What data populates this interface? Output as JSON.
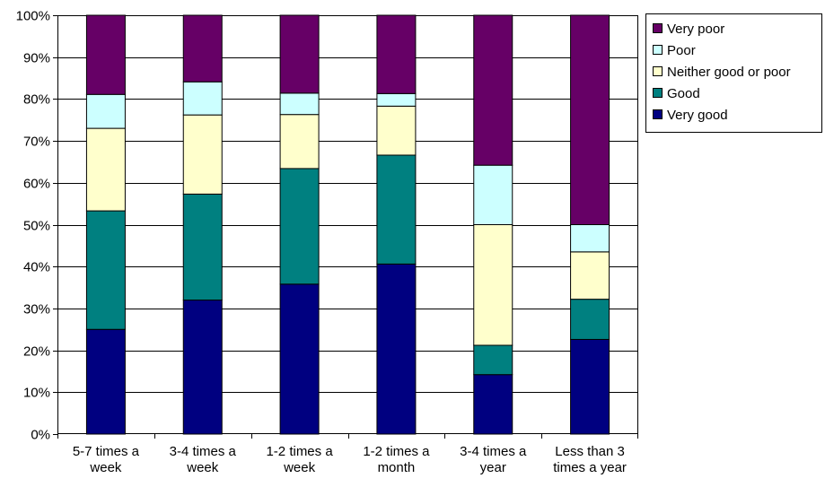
{
  "chart_data": {
    "type": "bar",
    "stacked": true,
    "percent": true,
    "title": "",
    "xlabel": "",
    "ylabel": "",
    "ylim": [
      0,
      100
    ],
    "yticks": [
      "0%",
      "10%",
      "20%",
      "30%",
      "40%",
      "50%",
      "60%",
      "70%",
      "80%",
      "90%",
      "100%"
    ],
    "grid": true,
    "legend_position": "top-right",
    "categories": [
      [
        "5-7 times a",
        "week"
      ],
      [
        "3-4 times a",
        "week"
      ],
      [
        "1-2 times a",
        "week"
      ],
      [
        "1-2 times a",
        "month"
      ],
      [
        "3-4 times a",
        "year"
      ],
      [
        "Less than 3",
        "times a year"
      ]
    ],
    "series": [
      {
        "name": "Very good",
        "color": "#000080",
        "values": [
          25.0,
          32.0,
          35.8,
          40.6,
          14.2,
          22.6
        ]
      },
      {
        "name": "Good",
        "color": "#008080",
        "values": [
          28.3,
          25.3,
          27.6,
          26.0,
          7.0,
          9.6
        ]
      },
      {
        "name": "Neither good or poor",
        "color": "#FFFFCC",
        "values": [
          19.7,
          18.9,
          12.9,
          11.7,
          28.8,
          11.3
        ]
      },
      {
        "name": "Poor",
        "color": "#CCFFFF",
        "values": [
          8.1,
          7.9,
          5.1,
          3.0,
          14.2,
          6.5
        ]
      },
      {
        "name": "Very poor",
        "color": "#660066",
        "values": [
          18.9,
          15.9,
          18.6,
          18.7,
          35.8,
          50.0
        ]
      }
    ],
    "legend_order": [
      "Very poor",
      "Poor",
      "Neither good or poor",
      "Good",
      "Very good"
    ]
  }
}
